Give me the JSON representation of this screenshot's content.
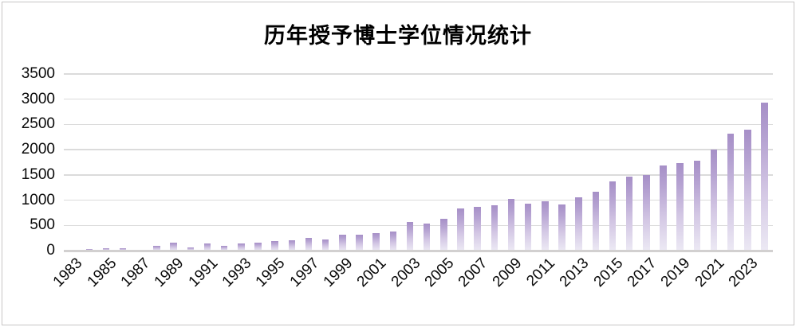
{
  "title": "历年授予博士学位情况统计",
  "colors": {
    "frame_border": "#c7c5c5",
    "gridline": "#dbdbdb",
    "axis_line": "#d2d0d0",
    "tick_text": "#0a0a0a",
    "title_text": "#000000",
    "bar_gradient_top": "#a68fc7",
    "bar_gradient_bottom": "#ece9f4"
  },
  "chart_data": {
    "type": "bar",
    "title": "历年授予博士学位情况统计",
    "xlabel": "",
    "ylabel": "",
    "ylim": [
      0,
      3500
    ],
    "yticks": [
      0,
      500,
      1000,
      1500,
      2000,
      2500,
      3000,
      3500
    ],
    "grid": true,
    "legend": false,
    "bar_count": 42,
    "categories": [
      1983,
      1984,
      1985,
      1986,
      1987,
      1988,
      1989,
      1990,
      1991,
      1992,
      1993,
      1994,
      1995,
      1996,
      1997,
      1998,
      1999,
      2000,
      2001,
      2002,
      2003,
      2004,
      2005,
      2006,
      2007,
      2008,
      2009,
      2010,
      2011,
      2012,
      2013,
      2014,
      2015,
      2016,
      2017,
      2018,
      2019,
      2020,
      2021,
      2022,
      2023,
      2024
    ],
    "values": [
      20,
      35,
      45,
      45,
      20,
      90,
      160,
      70,
      135,
      100,
      140,
      150,
      185,
      205,
      255,
      220,
      310,
      310,
      340,
      375,
      565,
      530,
      625,
      830,
      870,
      905,
      1030,
      935,
      980,
      920,
      1050,
      1170,
      1370,
      1470,
      1490,
      1680,
      1730,
      1780,
      2010,
      2310,
      2390,
      2940
    ],
    "x_tick_labels": [
      "1983",
      "1985",
      "1987",
      "1989",
      "1991",
      "1993",
      "1995",
      "1997",
      "1999",
      "2001",
      "2003",
      "2005",
      "2007",
      "2009",
      "2011",
      "2013",
      "2015",
      "2017",
      "2019",
      "2021",
      "2023"
    ],
    "x_tick_interval": 2
  }
}
